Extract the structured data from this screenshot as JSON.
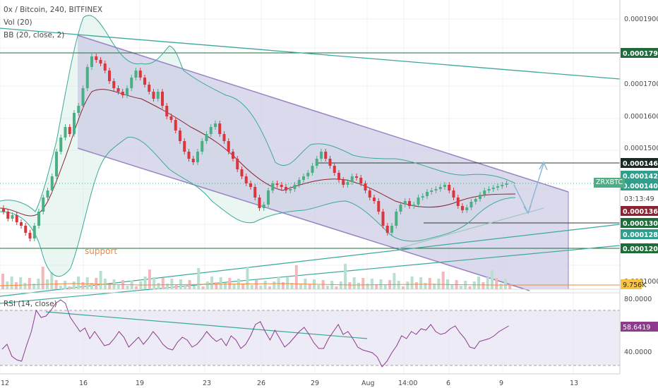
{
  "header": {
    "symbol_line": "0x / Bitcoin, 240, BITFINEX",
    "vol_label": "Vol (20)",
    "bb_label": "BB (20, close, 2)",
    "rsi_label": "RSI (14, close)"
  },
  "annotations": {
    "support": "support",
    "symbol_tag": "ZRXBTC",
    "countdown": "03:13:49"
  },
  "colors": {
    "up": "#4aaf84",
    "down": "#d9363e",
    "channel_fill": "#c8c6e2",
    "bb_line": "#3aa89a",
    "basis": "#8b2332",
    "trend": "#3aa89a",
    "hline": "#1f6b3a",
    "rsi_line": "#8e3a8e",
    "rsi_fill": "#e6e2f2"
  },
  "chart_data": {
    "type": "candlestick",
    "symbol": "0x / Bitcoin",
    "interval": "240",
    "exchange": "BITFINEX",
    "price_axis_ticks": [
      "0.00019000",
      "0.00017000",
      "0.00016000",
      "0.00015000",
      "0.00010000"
    ],
    "price_labels": [
      {
        "value": "0.00017958",
        "style": "hline"
      },
      {
        "value": "0.00014628",
        "style": "hline"
      },
      {
        "value": "0.00014247",
        "style": "bb"
      },
      {
        "value": "0.00014054",
        "style": "bb"
      },
      {
        "value": "0.00013628",
        "style": "basis"
      },
      {
        "value": "0.00013008",
        "style": "hline"
      },
      {
        "value": "0.00012821",
        "style": "bb"
      },
      {
        "value": "0.00012058",
        "style": "hline"
      }
    ],
    "volume_label": "9.756K",
    "rsi_axis_ticks": [
      "80.0000",
      "40.0000"
    ],
    "rsi_value": "58.6419",
    "x_ticks": [
      "12",
      "16",
      "19",
      "23",
      "26",
      "29",
      "Aug",
      "14:00",
      "6",
      "9",
      "13"
    ],
    "grid": true
  }
}
